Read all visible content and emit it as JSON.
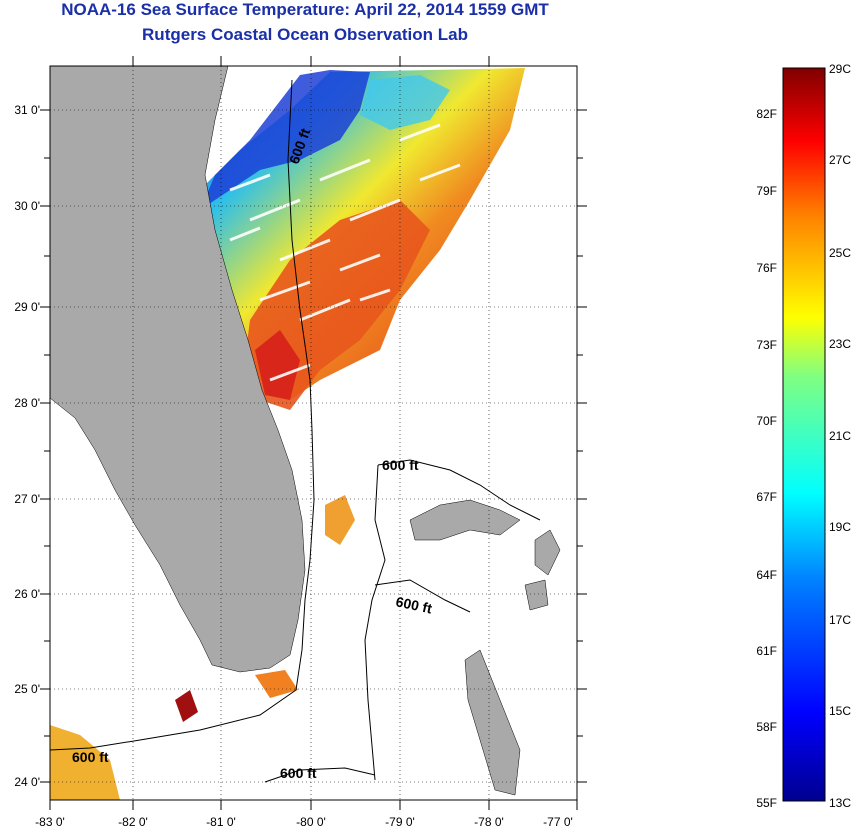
{
  "header": {
    "title": "NOAA-16 Sea Surface Temperature:  April 22, 2014 1559 GMT",
    "subtitle": "Rutgers Coastal Ocean Observation Lab"
  },
  "axes": {
    "lat_labels": [
      "31 0'",
      "30 0'",
      "29 0'",
      "28 0'",
      "27 0'",
      "26 0'",
      "25 0'",
      "24 0'"
    ],
    "lon_labels": [
      "-83 0'",
      "-82 0'",
      "-81 0'",
      "-80 0'",
      "-79 0'",
      "-78 0'",
      "-77 0'"
    ]
  },
  "contours": {
    "label_1": "600 ft",
    "label_2": "600 ft",
    "label_3": "600 ft",
    "label_4": "600 ft",
    "label_5": "600 ft"
  },
  "colorbar": {
    "fahrenheit": [
      "82F",
      "79F",
      "76F",
      "73F",
      "70F",
      "67F",
      "64F",
      "61F",
      "58F",
      "55F"
    ],
    "celsius": [
      "29C",
      "27C",
      "25C",
      "23C",
      "21C",
      "19C",
      "17C",
      "15C",
      "13C"
    ]
  },
  "colors": {
    "title": "#1a2fa8",
    "land": "#a9a9a9",
    "warm": "#e8561d",
    "cool": "#1c3fd6"
  }
}
